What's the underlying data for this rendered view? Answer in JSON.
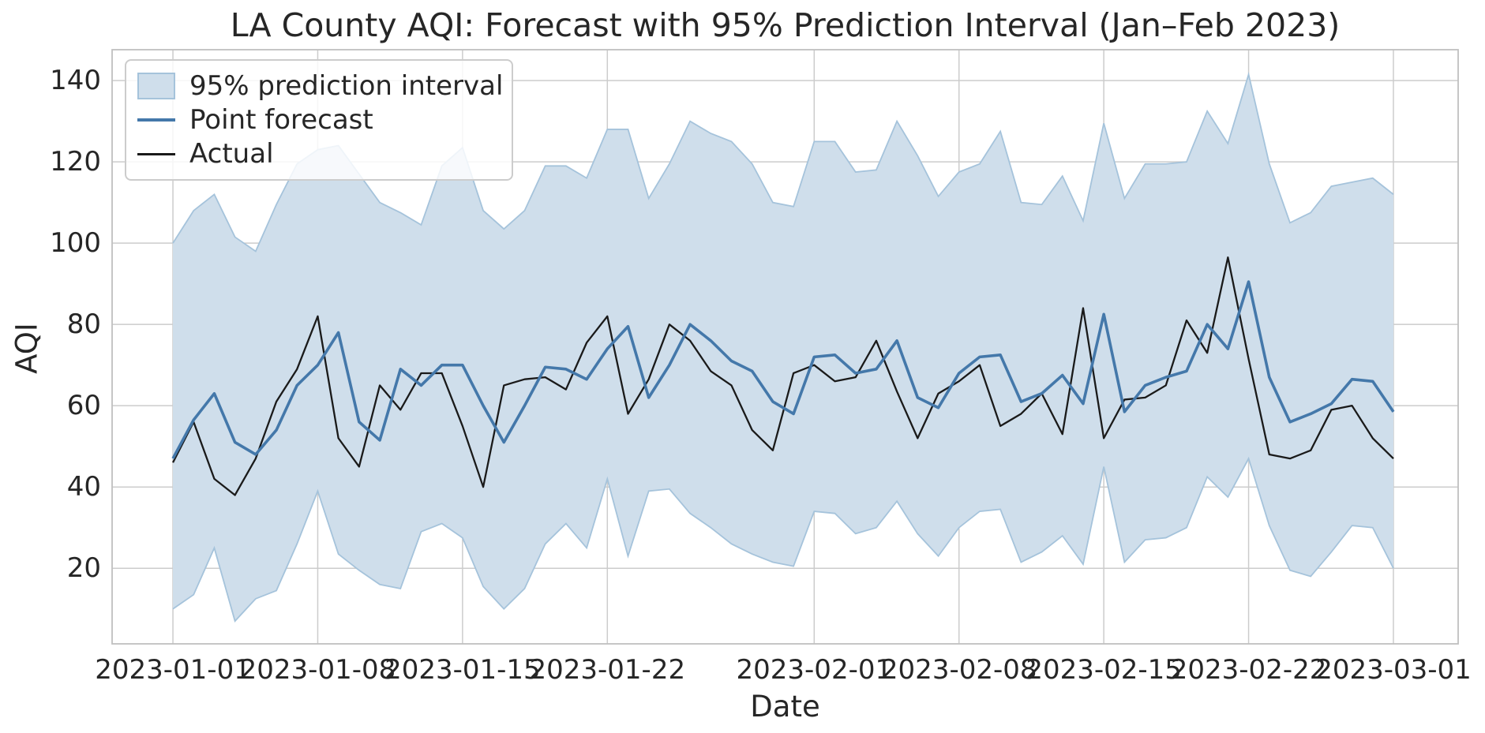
{
  "title": "LA County AQI: Forecast with 95% Prediction Interval (Jan–Feb 2023)",
  "colors": {
    "forecast_line": "#4478aa",
    "actual_line": "#1a1a1a",
    "band_fill": "#cfdeeb",
    "band_edge": "#a5c3db",
    "grid": "#cccccc",
    "spine": "#c0c0c0",
    "text": "#262626",
    "legend_border": "#cccccc"
  },
  "legend": {
    "items": [
      {
        "label": "95% prediction interval",
        "type": "band"
      },
      {
        "label": "Point forecast",
        "type": "forecast-line"
      },
      {
        "label": "Actual",
        "type": "actual-line"
      }
    ]
  },
  "chart_data": {
    "type": "line",
    "title": "LA County AQI: Forecast with 95% Prediction Interval (Jan–Feb 2023)",
    "xlabel": "Date",
    "ylabel": "AQI",
    "start_date": "2023-01-01",
    "end_date": "2023-03-01",
    "n_points": 60,
    "grid": true,
    "legend_position": "upper-left",
    "x_tick_days": [
      0,
      7,
      14,
      21,
      31,
      38,
      45,
      52,
      59
    ],
    "x_tick_labels": [
      "2023-01-01",
      "2023-01-08",
      "2023-01-15",
      "2023-01-22",
      "2023-02-01",
      "2023-02-08",
      "2023-02-15",
      "2023-02-22",
      "2023-03-01"
    ],
    "y_ticks": [
      20,
      40,
      60,
      80,
      100,
      120,
      140
    ],
    "xlim_days": [
      -2.94,
      62.13
    ],
    "ylim": [
      1.4,
      147.6
    ],
    "series": [
      {
        "name": "Point forecast",
        "values": [
          47,
          56.5,
          63,
          51,
          48,
          54,
          65,
          70,
          78,
          56,
          51.5,
          69,
          65,
          70,
          70,
          60,
          51,
          60,
          69.5,
          69,
          66.5,
          74,
          79.5,
          62,
          70,
          80,
          76,
          71,
          68.5,
          61,
          58,
          72,
          72.5,
          68,
          69,
          76,
          62,
          59.5,
          68,
          72,
          72.5,
          61,
          63,
          67.5,
          60.5,
          82.5,
          58.5,
          65,
          67,
          68.5,
          80,
          74,
          90.5,
          67,
          56,
          58,
          60.5,
          66.5,
          66,
          58.5
        ]
      },
      {
        "name": "Actual",
        "values": [
          46,
          56,
          42,
          38,
          47,
          61,
          69,
          82,
          52,
          45,
          65,
          59,
          68,
          68,
          55,
          40,
          65,
          66.5,
          67,
          64,
          75.5,
          82,
          58,
          66.5,
          80,
          76,
          68.5,
          65,
          54,
          49,
          68,
          70,
          66,
          67,
          76,
          63.5,
          52,
          63,
          66,
          70,
          55,
          58,
          63,
          53,
          84,
          52,
          61.5,
          62,
          65,
          81,
          73,
          96.5,
          71.5,
          48,
          47,
          49,
          59,
          60,
          52,
          47
        ]
      }
    ],
    "band": {
      "name": "95% prediction interval",
      "upper": [
        100,
        108,
        112,
        101.5,
        98,
        109.5,
        119.5,
        123,
        124,
        117,
        110,
        107.5,
        104.5,
        119,
        123.5,
        108,
        103.5,
        108,
        119,
        119,
        116,
        128,
        128,
        111,
        119.5,
        130,
        127,
        125,
        119.5,
        110,
        109,
        125,
        125,
        117.5,
        118,
        130,
        121.5,
        111.5,
        117.5,
        119.5,
        127.5,
        110,
        109.5,
        116.5,
        105.5,
        129.5,
        111,
        119.5,
        119.5,
        120,
        132.5,
        124.5,
        141.5,
        119.5,
        105,
        107.5,
        114,
        115,
        116,
        112
      ],
      "lower": [
        10,
        13.5,
        25,
        7,
        12.5,
        14.5,
        26,
        39,
        23.5,
        19.5,
        16,
        15,
        29,
        31,
        27.5,
        15.5,
        10,
        15,
        26,
        31,
        25,
        42,
        23,
        39,
        39.5,
        33.5,
        30,
        26,
        23.5,
        21.5,
        20.5,
        34,
        33.5,
        28.5,
        30,
        36.5,
        28.5,
        23,
        30,
        34,
        34.5,
        21.5,
        24,
        28,
        21,
        45,
        21.5,
        27,
        27.5,
        30,
        42.5,
        37.5,
        47,
        30.5,
        19.5,
        18,
        24,
        30.5,
        30,
        20
      ]
    }
  }
}
